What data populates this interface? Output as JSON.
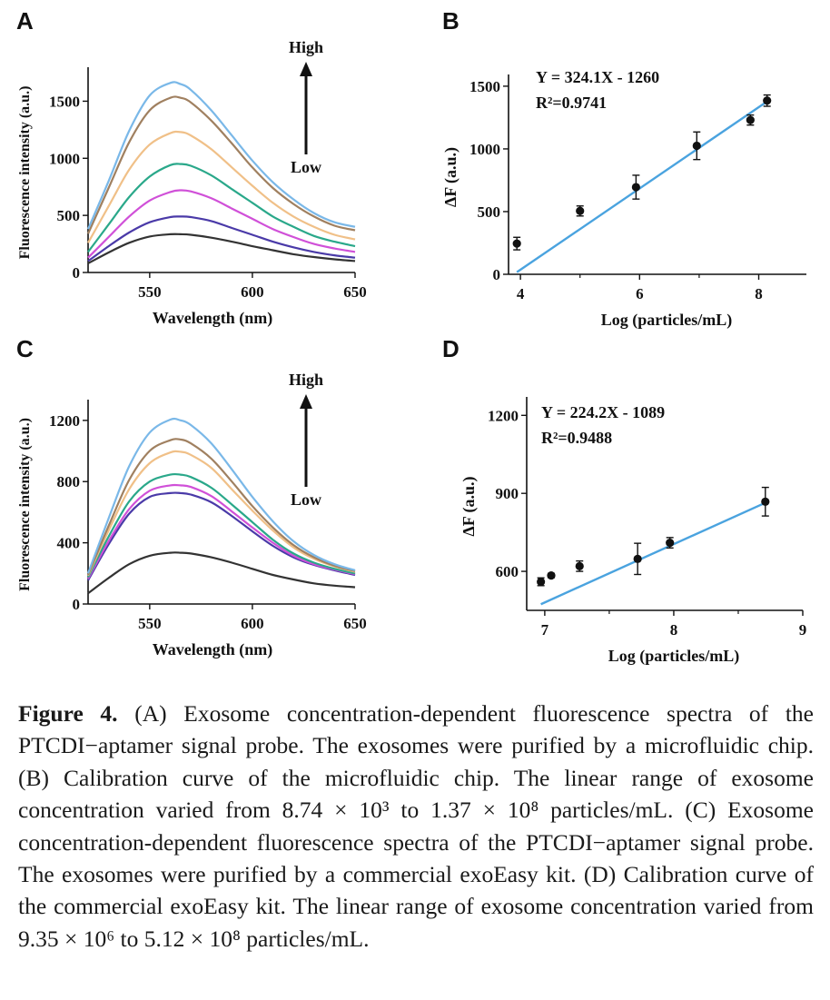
{
  "charts": [
    {
      "panel": "A",
      "type": "line",
      "xlabel": "Wavelength (nm)",
      "ylabel": "Fluorescence intensity (a.u.)",
      "xlim": [
        520,
        650
      ],
      "ylim": [
        0,
        1750
      ],
      "xticks": [
        550,
        600,
        650
      ],
      "yticks": [
        0,
        500,
        1000,
        1500
      ],
      "arrow": {
        "top": "High",
        "bottom": "Low"
      },
      "x": [
        520,
        530,
        540,
        550,
        560,
        565,
        570,
        580,
        590,
        600,
        610,
        620,
        630,
        640,
        650
      ],
      "series": [
        {
          "color": "#7ab8e8",
          "values": [
            380,
            800,
            1240,
            1550,
            1660,
            1650,
            1600,
            1420,
            1200,
            980,
            790,
            640,
            520,
            440,
            400
          ]
        },
        {
          "color": "#a08060",
          "values": [
            340,
            740,
            1140,
            1420,
            1530,
            1530,
            1490,
            1330,
            1130,
            920,
            740,
            600,
            490,
            410,
            370
          ]
        },
        {
          "color": "#f0c088",
          "values": [
            260,
            580,
            900,
            1120,
            1220,
            1230,
            1200,
            1080,
            920,
            760,
            610,
            490,
            400,
            330,
            290
          ]
        },
        {
          "color": "#2aa88a",
          "values": [
            180,
            420,
            660,
            840,
            940,
            950,
            935,
            850,
            730,
            610,
            490,
            400,
            320,
            270,
            230
          ]
        },
        {
          "color": "#d050d8",
          "values": [
            130,
            310,
            490,
            630,
            705,
            720,
            710,
            650,
            560,
            470,
            380,
            310,
            250,
            210,
            180
          ]
        },
        {
          "color": "#4a3aa8",
          "values": [
            100,
            230,
            350,
            440,
            485,
            490,
            485,
            450,
            390,
            330,
            270,
            220,
            180,
            150,
            130
          ]
        },
        {
          "color": "#333333",
          "values": [
            80,
            175,
            260,
            315,
            335,
            335,
            330,
            305,
            270,
            230,
            195,
            160,
            135,
            115,
            100
          ]
        }
      ]
    },
    {
      "panel": "B",
      "type": "scatter",
      "xlabel": "Log (particles/mL)",
      "ylabel": "ΔF (a.u.)",
      "xlim": [
        3.8,
        8.8
      ],
      "ylim": [
        0,
        1550
      ],
      "xticks": [
        4,
        6,
        8
      ],
      "yticks": [
        0,
        500,
        1000,
        1500
      ],
      "equation": "Y = 324.1X - 1260",
      "r2": "R²=0.9741",
      "fit": {
        "x": [
          3.94,
          8.14
        ],
        "color": "#4aa3df"
      },
      "points": [
        {
          "x": 3.94,
          "y": 245,
          "err": 50
        },
        {
          "x": 5.0,
          "y": 505,
          "err": 40
        },
        {
          "x": 5.94,
          "y": 695,
          "err": 95
        },
        {
          "x": 6.96,
          "y": 1025,
          "err": 110
        },
        {
          "x": 7.86,
          "y": 1230,
          "err": 40
        },
        {
          "x": 8.14,
          "y": 1385,
          "err": 45
        }
      ]
    },
    {
      "panel": "C",
      "type": "line",
      "xlabel": "Wavelength (nm)",
      "ylabel": "Fluorescence intensity (a.u.)",
      "xlim": [
        520,
        650
      ],
      "ylim": [
        0,
        1300
      ],
      "xticks": [
        550,
        600,
        650
      ],
      "yticks": [
        0,
        400,
        800,
        1200
      ],
      "arrow": {
        "top": "High",
        "bottom": "Low"
      },
      "x": [
        520,
        530,
        540,
        550,
        560,
        565,
        570,
        580,
        590,
        600,
        610,
        620,
        630,
        640,
        650
      ],
      "series": [
        {
          "color": "#7ab8e8",
          "values": [
            200,
            560,
            900,
            1120,
            1205,
            1200,
            1170,
            1050,
            880,
            700,
            540,
            410,
            320,
            260,
            220
          ]
        },
        {
          "color": "#a08060",
          "values": [
            190,
            510,
            810,
            1000,
            1070,
            1075,
            1050,
            950,
            800,
            640,
            500,
            385,
            305,
            250,
            215
          ]
        },
        {
          "color": "#f0c088",
          "values": [
            185,
            480,
            750,
            920,
            990,
            995,
            975,
            890,
            750,
            610,
            480,
            370,
            295,
            245,
            210
          ]
        },
        {
          "color": "#2aa88a",
          "values": [
            175,
            440,
            670,
            800,
            845,
            845,
            830,
            760,
            650,
            535,
            420,
            330,
            270,
            230,
            200
          ]
        },
        {
          "color": "#d050d8",
          "values": [
            165,
            410,
            620,
            740,
            775,
            775,
            765,
            705,
            605,
            500,
            400,
            315,
            260,
            225,
            195
          ]
        },
        {
          "color": "#4a3aa8",
          "values": [
            155,
            390,
            590,
            700,
            725,
            725,
            715,
            665,
            575,
            475,
            380,
            305,
            255,
            220,
            190
          ]
        },
        {
          "color": "#333333",
          "values": [
            70,
            170,
            260,
            315,
            335,
            335,
            330,
            305,
            270,
            230,
            190,
            160,
            135,
            120,
            110
          ]
        }
      ]
    },
    {
      "panel": "D",
      "type": "scatter",
      "xlabel": "Log (particles/mL)",
      "ylabel": "ΔF (a.u.)",
      "xlim": [
        6.86,
        9.0
      ],
      "ylim": [
        450,
        1250
      ],
      "xticks": [
        7,
        8,
        9
      ],
      "yticks": [
        600,
        900,
        1200
      ],
      "equation": "Y = 224.2X - 1089",
      "r2": "R²=0.9488",
      "fit": {
        "x": [
          6.97,
          8.71
        ],
        "color": "#4aa3df"
      },
      "points": [
        {
          "x": 6.97,
          "y": 560,
          "err": 15
        },
        {
          "x": 7.05,
          "y": 584,
          "err": 8
        },
        {
          "x": 7.27,
          "y": 620,
          "err": 20
        },
        {
          "x": 7.72,
          "y": 648,
          "err": 60
        },
        {
          "x": 7.97,
          "y": 710,
          "err": 20
        },
        {
          "x": 8.71,
          "y": 868,
          "err": 55
        }
      ]
    }
  ],
  "caption": {
    "label": "Figure 4.",
    "text": " (A) Exosome concentration-dependent fluorescence spectra of the PTCDI−aptamer signal probe. The exosomes were purified by a microfluidic chip. (B) Calibration curve of the microfluidic chip. The linear range of exosome concentration varied from 8.74 × 10³ to 1.37 × 10⁸ particles/mL. (C) Exosome concentration-dependent fluorescence spectra of the PTCDI−aptamer signal probe. The exosomes were purified by a commercial exoEasy kit. (D) Calibration curve of the commercial exoEasy kit. The linear range of exosome concentration varied from 9.35 × 10⁶ to 5.12 × 10⁸ particles/mL."
  }
}
